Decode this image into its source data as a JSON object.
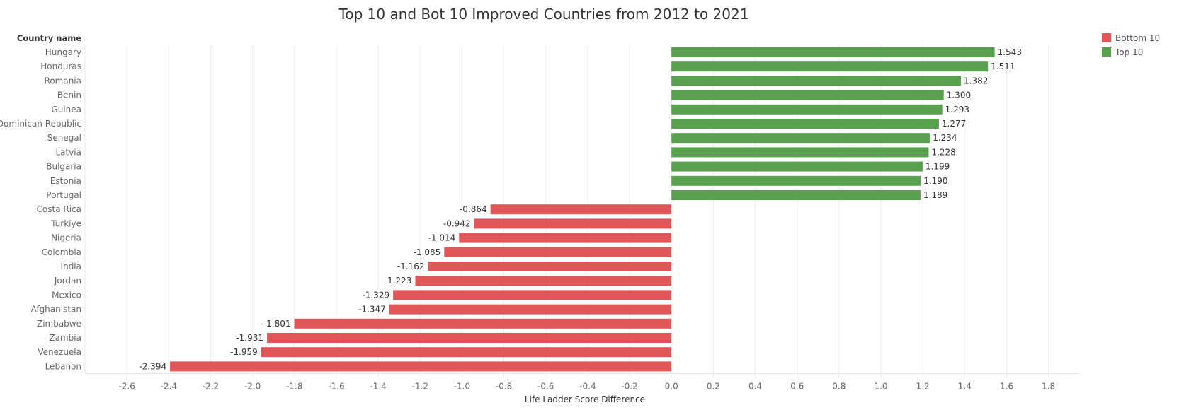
{
  "chart_data": {
    "type": "bar",
    "orientation": "horizontal",
    "title": "Top 10 and Bot 10 Improved Countries from 2012 to 2021",
    "xlabel": "Life Ladder Score Difference",
    "row_header": "Country name",
    "xlim": [
      -2.8,
      1.95
    ],
    "xticks": [
      "-2.6",
      "-2.4",
      "-2.2",
      "-2.0",
      "-1.8",
      "-1.6",
      "-1.4",
      "-1.2",
      "-1.0",
      "-0.8",
      "-0.6",
      "-0.4",
      "-0.2",
      "0.0",
      "0.2",
      "0.4",
      "0.6",
      "0.8",
      "1.0",
      "1.2",
      "1.4",
      "1.6",
      "1.8"
    ],
    "grid": "vertical",
    "legend_position": "top-right",
    "legend": [
      {
        "name": "Bottom 10",
        "color": "#e15759"
      },
      {
        "name": "Top 10",
        "color": "#59a14f"
      }
    ],
    "categories": [
      "Hungary",
      "Honduras",
      "Romania",
      "Benin",
      "Guinea",
      "Dominican Republic",
      "Senegal",
      "Latvia",
      "Bulgaria",
      "Estonia",
      "Portugal",
      "Costa Rica",
      "Turkiye",
      "Nigeria",
      "Colombia",
      "India",
      "Jordan",
      "Mexico",
      "Afghanistan",
      "Zimbabwe",
      "Zambia",
      "Venezuela",
      "Lebanon"
    ],
    "values": [
      1.543,
      1.511,
      1.382,
      1.3,
      1.293,
      1.277,
      1.234,
      1.228,
      1.199,
      1.19,
      1.189,
      -0.864,
      -0.942,
      -1.014,
      -1.085,
      -1.162,
      -1.223,
      -1.329,
      -1.347,
      -1.801,
      -1.931,
      -1.959,
      -2.394
    ],
    "value_labels": [
      "1.543",
      "1.511",
      "1.382",
      "1.300",
      "1.293",
      "1.277",
      "1.234",
      "1.228",
      "1.199",
      "1.190",
      "1.189",
      "-0.864",
      "-0.942",
      "-1.014",
      "-1.085",
      "-1.162",
      "-1.223",
      "-1.329",
      "-1.347",
      "-1.801",
      "-1.931",
      "-1.959",
      "-2.394"
    ],
    "groups": [
      "Top 10",
      "Top 10",
      "Top 10",
      "Top 10",
      "Top 10",
      "Top 10",
      "Top 10",
      "Top 10",
      "Top 10",
      "Top 10",
      "Top 10",
      "Bottom 10",
      "Bottom 10",
      "Bottom 10",
      "Bottom 10",
      "Bottom 10",
      "Bottom 10",
      "Bottom 10",
      "Bottom 10",
      "Bottom 10",
      "Bottom 10",
      "Bottom 10",
      "Bottom 10"
    ]
  }
}
